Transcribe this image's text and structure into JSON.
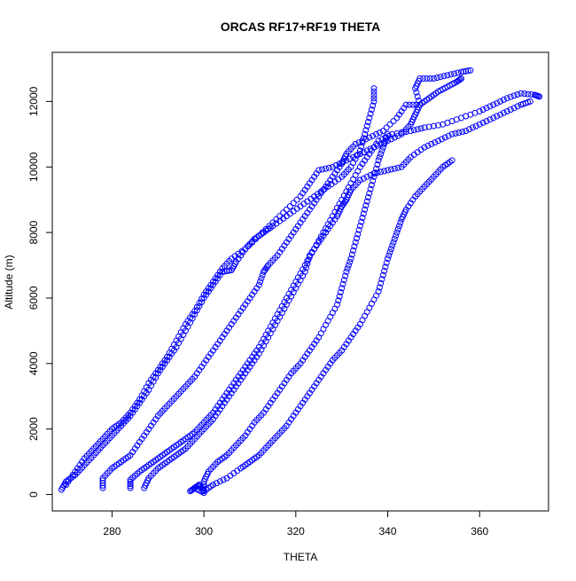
{
  "chart_data": {
    "type": "scatter",
    "title": "ORCAS RF17+RF19 THETA",
    "xlabel": "THETA",
    "ylabel": "Altitude (m)",
    "xlim": [
      267,
      375
    ],
    "ylim": [
      -500,
      13500
    ],
    "xticks": [
      280,
      300,
      320,
      340,
      360
    ],
    "yticks": [
      0,
      2000,
      4000,
      6000,
      8000,
      10000,
      12000
    ],
    "grid": false,
    "marker": "open-circle",
    "color": "#0000ff",
    "series": [
      {
        "values": [
          [
            269,
            150
          ],
          [
            270,
            400
          ],
          [
            272,
            600
          ],
          [
            274,
            900
          ],
          [
            276,
            1200
          ],
          [
            278,
            1500
          ],
          [
            280,
            1800
          ],
          [
            282,
            2100
          ],
          [
            284,
            2400
          ],
          [
            286,
            2800
          ],
          [
            288,
            3200
          ],
          [
            290,
            3700
          ],
          [
            292,
            4100
          ],
          [
            294,
            4500
          ],
          [
            296,
            5000
          ],
          [
            298,
            5500
          ],
          [
            300,
            6000
          ],
          [
            302,
            6400
          ],
          [
            304,
            6800
          ],
          [
            306,
            6850
          ],
          [
            307,
            7100
          ],
          [
            309,
            7500
          ],
          [
            311,
            7800
          ],
          [
            313,
            8000
          ],
          [
            315,
            8200
          ],
          [
            318,
            8500
          ],
          [
            321,
            8800
          ],
          [
            324,
            9100
          ],
          [
            327,
            9400
          ],
          [
            330,
            9700
          ],
          [
            332,
            10000
          ],
          [
            334,
            10500
          ],
          [
            335,
            11000
          ],
          [
            336,
            11500
          ],
          [
            337,
            12000
          ],
          [
            337,
            12400
          ]
        ]
      },
      {
        "values": [
          [
            270,
            300
          ],
          [
            272,
            700
          ],
          [
            274,
            1100
          ],
          [
            276,
            1400
          ],
          [
            278,
            1700
          ],
          [
            280,
            2000
          ],
          [
            282,
            2200
          ],
          [
            284,
            2500
          ],
          [
            286,
            2900
          ],
          [
            288,
            3400
          ],
          [
            290,
            3800
          ],
          [
            292,
            4200
          ],
          [
            294,
            4700
          ],
          [
            296,
            5200
          ],
          [
            298,
            5600
          ],
          [
            300,
            6100
          ],
          [
            302,
            6500
          ],
          [
            304,
            6900
          ],
          [
            306,
            7200
          ],
          [
            309,
            7500
          ],
          [
            312,
            7900
          ],
          [
            315,
            8300
          ],
          [
            318,
            8700
          ],
          [
            321,
            9100
          ],
          [
            323,
            9500
          ],
          [
            325,
            9900
          ],
          [
            328,
            10000
          ],
          [
            331,
            10200
          ],
          [
            334,
            10400
          ],
          [
            337,
            10600
          ],
          [
            340,
            10800
          ],
          [
            343,
            11000
          ],
          [
            345,
            11300
          ],
          [
            346,
            11600
          ],
          [
            347,
            11900
          ],
          [
            346,
            12400
          ],
          [
            347,
            12700
          ],
          [
            350,
            12700
          ],
          [
            353,
            12800
          ],
          [
            356,
            12900
          ],
          [
            358,
            12950
          ]
        ]
      },
      {
        "values": [
          [
            278,
            200
          ],
          [
            278,
            500
          ],
          [
            280,
            800
          ],
          [
            282,
            1000
          ],
          [
            284,
            1200
          ],
          [
            286,
            1600
          ],
          [
            288,
            2000
          ],
          [
            290,
            2400
          ],
          [
            292,
            2700
          ],
          [
            294,
            3000
          ],
          [
            296,
            3300
          ],
          [
            298,
            3600
          ],
          [
            300,
            4000
          ],
          [
            302,
            4400
          ],
          [
            304,
            4800
          ],
          [
            306,
            5200
          ],
          [
            308,
            5600
          ],
          [
            310,
            6000
          ],
          [
            312,
            6400
          ],
          [
            313,
            6800
          ],
          [
            314,
            7000
          ],
          [
            316,
            7300
          ],
          [
            318,
            7700
          ],
          [
            320,
            8100
          ],
          [
            322,
            8500
          ],
          [
            324,
            8900
          ],
          [
            326,
            9300
          ],
          [
            328,
            9700
          ],
          [
            330,
            10100
          ],
          [
            331,
            10400
          ],
          [
            333,
            10700
          ],
          [
            336,
            10900
          ],
          [
            339,
            11100
          ],
          [
            342,
            11500
          ],
          [
            344,
            11900
          ],
          [
            347,
            11900
          ],
          [
            349,
            12100
          ],
          [
            351,
            12300
          ],
          [
            353,
            12450
          ],
          [
            355,
            12600
          ],
          [
            356,
            12700
          ]
        ]
      },
      {
        "values": [
          [
            284,
            200
          ],
          [
            284,
            450
          ],
          [
            286,
            700
          ],
          [
            288,
            900
          ],
          [
            290,
            1100
          ],
          [
            292,
            1300
          ],
          [
            294,
            1500
          ],
          [
            296,
            1700
          ],
          [
            298,
            1900
          ],
          [
            300,
            2200
          ],
          [
            302,
            2500
          ],
          [
            304,
            2900
          ],
          [
            306,
            3300
          ],
          [
            308,
            3700
          ],
          [
            310,
            4100
          ],
          [
            312,
            4500
          ],
          [
            314,
            5000
          ],
          [
            316,
            5500
          ],
          [
            318,
            6000
          ],
          [
            320,
            6500
          ],
          [
            322,
            7000
          ],
          [
            324,
            7500
          ],
          [
            326,
            8000
          ],
          [
            328,
            8500
          ],
          [
            330,
            9000
          ],
          [
            332,
            9500
          ],
          [
            334,
            10000
          ],
          [
            336,
            10400
          ],
          [
            338,
            10800
          ],
          [
            341,
            11000
          ],
          [
            345,
            11100
          ],
          [
            348,
            11200
          ],
          [
            352,
            11300
          ],
          [
            356,
            11500
          ],
          [
            360,
            11700
          ],
          [
            363,
            11900
          ],
          [
            366,
            12100
          ],
          [
            369,
            12250
          ],
          [
            372,
            12200
          ],
          [
            373,
            12150
          ]
        ]
      },
      {
        "values": [
          [
            287,
            200
          ],
          [
            288,
            500
          ],
          [
            290,
            800
          ],
          [
            292,
            1000
          ],
          [
            294,
            1200
          ],
          [
            296,
            1400
          ],
          [
            298,
            1700
          ],
          [
            300,
            2000
          ],
          [
            302,
            2300
          ],
          [
            304,
            2700
          ],
          [
            306,
            3100
          ],
          [
            308,
            3500
          ],
          [
            310,
            3900
          ],
          [
            312,
            4300
          ],
          [
            314,
            4800
          ],
          [
            316,
            5300
          ],
          [
            318,
            5800
          ],
          [
            320,
            6300
          ],
          [
            322,
            6800
          ],
          [
            323,
            7300
          ],
          [
            325,
            7700
          ],
          [
            327,
            8100
          ],
          [
            329,
            8500
          ],
          [
            330,
            8800
          ],
          [
            331,
            9000
          ],
          [
            332,
            9300
          ],
          [
            334,
            9600
          ],
          [
            337,
            9800
          ],
          [
            340,
            9900
          ],
          [
            343,
            10000
          ],
          [
            345,
            10300
          ],
          [
            348,
            10600
          ],
          [
            351,
            10800
          ],
          [
            354,
            11000
          ],
          [
            357,
            11100
          ],
          [
            360,
            11300
          ],
          [
            363,
            11500
          ],
          [
            366,
            11700
          ],
          [
            369,
            11900
          ],
          [
            371,
            12000
          ]
        ]
      },
      {
        "values": [
          [
            297,
            100
          ],
          [
            298,
            200
          ],
          [
            299,
            300
          ],
          [
            300,
            100
          ],
          [
            302,
            300
          ],
          [
            305,
            500
          ],
          [
            308,
            800
          ],
          [
            310,
            1000
          ],
          [
            312,
            1200
          ],
          [
            314,
            1500
          ],
          [
            316,
            1800
          ],
          [
            318,
            2100
          ],
          [
            320,
            2500
          ],
          [
            322,
            2900
          ],
          [
            324,
            3300
          ],
          [
            326,
            3700
          ],
          [
            328,
            4100
          ],
          [
            330,
            4400
          ],
          [
            332,
            4800
          ],
          [
            334,
            5200
          ],
          [
            336,
            5700
          ],
          [
            338,
            6200
          ],
          [
            339,
            6700
          ],
          [
            340,
            7200
          ],
          [
            341,
            7600
          ],
          [
            342,
            8000
          ],
          [
            343,
            8400
          ],
          [
            344,
            8700
          ],
          [
            346,
            9100
          ],
          [
            348,
            9400
          ],
          [
            350,
            9700
          ],
          [
            352,
            10000
          ],
          [
            354,
            10200
          ]
        ]
      },
      {
        "values": [
          [
            298,
            200
          ],
          [
            300,
            50
          ],
          [
            300,
            400
          ],
          [
            301,
            700
          ],
          [
            303,
            1000
          ],
          [
            305,
            1200
          ],
          [
            307,
            1500
          ],
          [
            309,
            1800
          ],
          [
            311,
            2200
          ],
          [
            313,
            2500
          ],
          [
            315,
            2900
          ],
          [
            317,
            3300
          ],
          [
            319,
            3700
          ],
          [
            321,
            4000
          ],
          [
            323,
            4400
          ],
          [
            325,
            4800
          ],
          [
            327,
            5300
          ],
          [
            329,
            5800
          ],
          [
            330,
            6300
          ],
          [
            331,
            6800
          ],
          [
            332,
            7200
          ],
          [
            333,
            7700
          ],
          [
            334,
            8200
          ],
          [
            335,
            8700
          ],
          [
            336,
            9200
          ],
          [
            337,
            9700
          ],
          [
            338,
            10200
          ],
          [
            339,
            10600
          ],
          [
            340,
            11000
          ]
        ]
      }
    ]
  }
}
